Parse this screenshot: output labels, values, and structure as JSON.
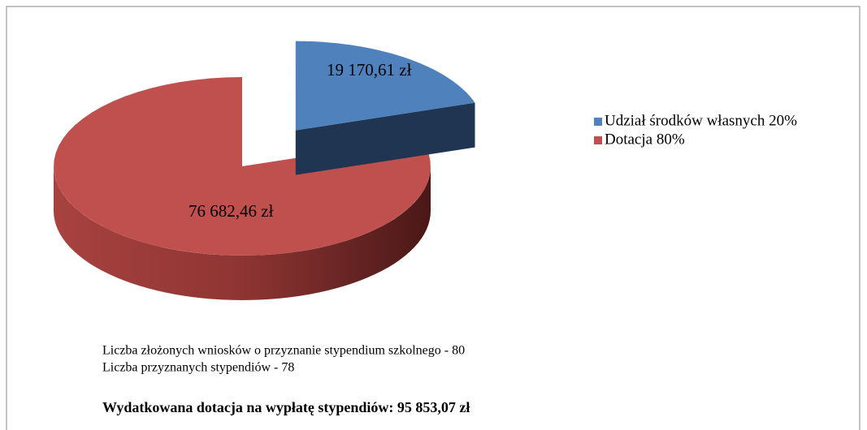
{
  "chart_data": {
    "type": "pie",
    "categories": [
      "Udział środków własnych 20%",
      "Dotacja 80%"
    ],
    "values": [
      19170.61,
      76682.46
    ],
    "value_labels": [
      "19 170,61 zł",
      "76 682,46 zł"
    ],
    "colors": [
      "#4f81bd",
      "#c0504d"
    ],
    "legend": "right",
    "annotations": [
      "Liczba złożonych wniosków o przyznanie stypendium szkolnego - 80",
      "Liczba przyznanych stypendiów - 78",
      "Wydatkowana dotacja na wypłatę stypendiów: 95 853,07 zł"
    ]
  }
}
